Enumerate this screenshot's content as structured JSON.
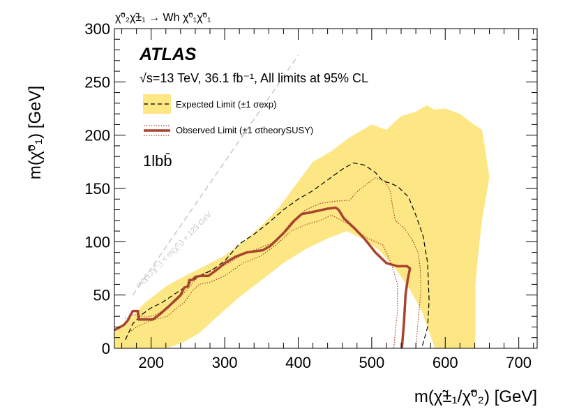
{
  "chart_data": {
    "type": "contour",
    "process_label": "χ̃⁰₂χ̃±₁ → Wh χ̃⁰₁χ̃⁰₁",
    "experiment": "ATLAS",
    "info_text": "√s=13 TeV, 36.1 fb⁻¹, All limits at 95% CL",
    "channel": "1lbb̄",
    "xlabel": "m(χ̃±₁/χ̃⁰₂) [GeV]",
    "ylabel": "m(χ̃⁰₁) [GeV]",
    "xlim": [
      150,
      725
    ],
    "ylim": [
      0,
      300
    ],
    "x_ticks": [
      200,
      300,
      400,
      500,
      600,
      700
    ],
    "y_ticks": [
      0,
      50,
      100,
      150,
      200,
      250,
      300
    ],
    "kinematic_label": "m(χ̃±₁/χ̃⁰₂) < m(χ̃⁰₁) + 125 GeV",
    "kinematic_line": [
      [
        175,
        50
      ],
      [
        400,
        275
      ]
    ],
    "colors": {
      "band": "#fde784",
      "observed": "#a8432d",
      "expected": "#000000",
      "kinematic": "#c8c8c8"
    },
    "legend": [
      {
        "label": "Expected Limit (±1 σexp)",
        "style": "expected"
      },
      {
        "label": "Observed Limit (±1 σtheorySUSY)",
        "style": "observed"
      }
    ],
    "series": [
      {
        "name": "expected_band",
        "kind": "band",
        "points": [
          [
            150,
            0
          ],
          [
            150,
            14
          ],
          [
            160,
            22
          ],
          [
            175,
            30
          ],
          [
            190,
            42
          ],
          [
            205,
            50
          ],
          [
            220,
            58
          ],
          [
            235,
            64
          ],
          [
            252,
            70
          ],
          [
            275,
            78
          ],
          [
            300,
            87
          ],
          [
            325,
            100
          ],
          [
            350,
            115
          ],
          [
            375,
            133
          ],
          [
            395,
            152
          ],
          [
            420,
            175
          ],
          [
            445,
            185
          ],
          [
            470,
            198
          ],
          [
            500,
            210
          ],
          [
            520,
            205
          ],
          [
            540,
            218
          ],
          [
            560,
            222
          ],
          [
            575,
            228
          ],
          [
            585,
            224
          ],
          [
            600,
            225
          ],
          [
            620,
            220
          ],
          [
            635,
            212
          ],
          [
            650,
            205
          ],
          [
            655,
            185
          ],
          [
            660,
            160
          ],
          [
            655,
            140
          ],
          [
            650,
            120
          ],
          [
            645,
            90
          ],
          [
            641,
            60
          ],
          [
            641,
            0
          ],
          [
            586,
            0
          ],
          [
            568,
            35
          ],
          [
            552,
            55
          ],
          [
            532,
            75
          ],
          [
            510,
            92
          ],
          [
            490,
            102
          ],
          [
            466,
            110
          ],
          [
            440,
            103
          ],
          [
            410,
            93
          ],
          [
            380,
            80
          ],
          [
            352,
            65
          ],
          [
            320,
            48
          ],
          [
            300,
            36
          ],
          [
            265,
            14
          ],
          [
            245,
            6
          ],
          [
            225,
            1
          ],
          [
            205,
            0
          ]
        ]
      },
      {
        "name": "expected",
        "kind": "dashed",
        "points": [
          [
            165,
            8
          ],
          [
            175,
            23
          ],
          [
            188,
            32
          ],
          [
            200,
            38
          ],
          [
            215,
            43
          ],
          [
            230,
            50
          ],
          [
            245,
            57
          ],
          [
            263,
            67
          ],
          [
            282,
            73
          ],
          [
            300,
            82
          ],
          [
            320,
            98
          ],
          [
            340,
            107
          ],
          [
            360,
            118
          ],
          [
            380,
            130
          ],
          [
            400,
            140
          ],
          [
            420,
            148
          ],
          [
            440,
            158
          ],
          [
            460,
            168
          ],
          [
            475,
            174
          ],
          [
            490,
            172
          ],
          [
            505,
            165
          ],
          [
            515,
            157
          ],
          [
            525,
            155
          ],
          [
            535,
            152
          ],
          [
            550,
            142
          ],
          [
            560,
            125
          ],
          [
            570,
            105
          ],
          [
            576,
            80
          ],
          [
            578,
            45
          ],
          [
            576,
            20
          ],
          [
            568,
            0
          ]
        ]
      },
      {
        "name": "observed_plus",
        "kind": "dotted",
        "points": [
          [
            165,
            28
          ],
          [
            180,
            32
          ],
          [
            192,
            29
          ],
          [
            205,
            31
          ],
          [
            222,
            38
          ],
          [
            235,
            45
          ],
          [
            250,
            56
          ],
          [
            265,
            68
          ],
          [
            280,
            73
          ],
          [
            300,
            78
          ],
          [
            325,
            88
          ],
          [
            350,
            95
          ],
          [
            370,
            100
          ],
          [
            390,
            118
          ],
          [
            410,
            130
          ],
          [
            430,
            136
          ],
          [
            450,
            138
          ],
          [
            470,
            139
          ],
          [
            480,
            147
          ],
          [
            495,
            155
          ],
          [
            505,
            160
          ],
          [
            518,
            157
          ],
          [
            525,
            148
          ],
          [
            528,
            135
          ],
          [
            532,
            120
          ],
          [
            545,
            112
          ],
          [
            555,
            102
          ],
          [
            563,
            90
          ],
          [
            566,
            75
          ],
          [
            567,
            55
          ],
          [
            563,
            25
          ],
          [
            560,
            0
          ]
        ]
      },
      {
        "name": "observed_minus",
        "kind": "dotted",
        "points": [
          [
            170,
            15
          ],
          [
            180,
            20
          ],
          [
            192,
            24
          ],
          [
            205,
            27
          ],
          [
            222,
            30
          ],
          [
            235,
            38
          ],
          [
            245,
            43
          ],
          [
            255,
            53
          ],
          [
            265,
            60
          ],
          [
            280,
            62
          ],
          [
            300,
            68
          ],
          [
            325,
            80
          ],
          [
            350,
            87
          ],
          [
            370,
            97
          ],
          [
            390,
            110
          ],
          [
            410,
            116
          ],
          [
            430,
            120
          ],
          [
            445,
            125
          ],
          [
            465,
            118
          ],
          [
            480,
            110
          ],
          [
            495,
            103
          ],
          [
            505,
            100
          ],
          [
            515,
            97
          ],
          [
            525,
            82
          ],
          [
            530,
            72
          ],
          [
            535,
            60
          ],
          [
            535,
            35
          ],
          [
            532,
            15
          ],
          [
            530,
            0
          ]
        ]
      },
      {
        "name": "observed",
        "kind": "solid",
        "points": [
          [
            150,
            17
          ],
          [
            158,
            20
          ],
          [
            163,
            22
          ],
          [
            168,
            26
          ],
          [
            175,
            35
          ],
          [
            182,
            35
          ],
          [
            183,
            27
          ],
          [
            192,
            27
          ],
          [
            202,
            27
          ],
          [
            212,
            32
          ],
          [
            225,
            40
          ],
          [
            240,
            50
          ],
          [
            245,
            57
          ],
          [
            250,
            58
          ],
          [
            252,
            64
          ],
          [
            256,
            64
          ],
          [
            260,
            67
          ],
          [
            268,
            68
          ],
          [
            278,
            68
          ],
          [
            290,
            74
          ],
          [
            300,
            80
          ],
          [
            315,
            86
          ],
          [
            330,
            90
          ],
          [
            352,
            92
          ],
          [
            362,
            96
          ],
          [
            380,
            108
          ],
          [
            395,
            120
          ],
          [
            405,
            126
          ],
          [
            420,
            128
          ],
          [
            440,
            131
          ],
          [
            451,
            132
          ],
          [
            455,
            130
          ],
          [
            462,
            122
          ],
          [
            476,
            113
          ],
          [
            490,
            103
          ],
          [
            505,
            90
          ],
          [
            520,
            80
          ],
          [
            535,
            77
          ],
          [
            548,
            77
          ],
          [
            552,
            75
          ],
          [
            549,
            65
          ],
          [
            546,
            50
          ],
          [
            544,
            25
          ],
          [
            541,
            0
          ]
        ]
      }
    ]
  }
}
